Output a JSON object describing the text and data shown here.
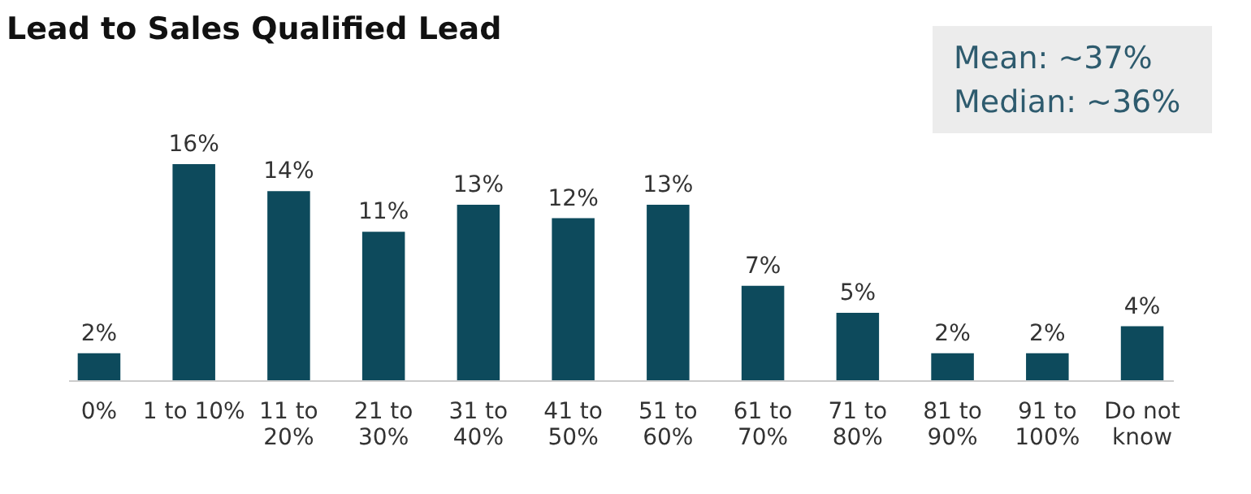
{
  "chart_data": {
    "type": "bar",
    "title": "Lead to Sales Qualified Lead",
    "categories": [
      "0%",
      "1 to 10%",
      "11 to 20%",
      "21 to 30%",
      "31 to 40%",
      "41 to 50%",
      "51 to 60%",
      "61 to 70%",
      "71 to 80%",
      "81 to 90%",
      "91 to 100%",
      "Do not know"
    ],
    "values": [
      2,
      16,
      14,
      11,
      13,
      12,
      13,
      7,
      5,
      2,
      2,
      4
    ],
    "value_labels": [
      "2%",
      "16%",
      "14%",
      "11%",
      "13%",
      "12%",
      "13%",
      "7%",
      "5%",
      "2%",
      "2%",
      "4%"
    ],
    "color": "#0d4a5c",
    "annotations": [
      "Mean: ~37%",
      "Median: ~36%"
    ],
    "grid": false
  }
}
